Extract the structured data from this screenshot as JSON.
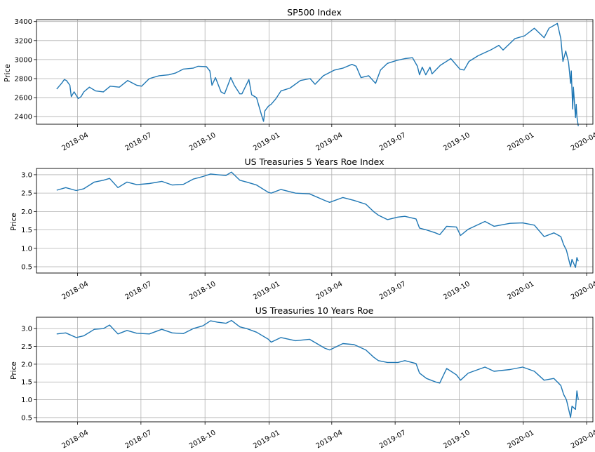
{
  "colors": {
    "line": "#1f77b4",
    "grid": "#b0b0b0"
  },
  "chart_data": [
    {
      "type": "line",
      "title": "SP500 Index",
      "xlabel": "",
      "ylabel": "Price",
      "grid": true,
      "xlim": [
        "2018-02-01",
        "2020-04-10"
      ],
      "ylim": [
        2320,
        3420
      ],
      "yticks": [
        2400,
        2600,
        2800,
        3000,
        3200,
        3400
      ],
      "yticks_labels": [
        "2400",
        "2600",
        "2800",
        "3000",
        "3200",
        "3400"
      ],
      "xticks": [
        "2018-04-01",
        "2018-07-01",
        "2018-10-01",
        "2019-01-01",
        "2019-04-01",
        "2019-07-01",
        "2019-10-01",
        "2020-01-01",
        "2020-04-01"
      ],
      "xticks_labels": [
        "2018-04",
        "2018-07",
        "2018-10",
        "2019-01",
        "2019-04",
        "2019-07",
        "2019-10",
        "2020-01",
        "2020-04"
      ],
      "series": [
        {
          "x": [
            "2018-03-02",
            "2018-03-09",
            "2018-03-13",
            "2018-03-16",
            "2018-03-21",
            "2018-03-23",
            "2018-03-27",
            "2018-04-02",
            "2018-04-06",
            "2018-04-10",
            "2018-04-18",
            "2018-04-27",
            "2018-05-08",
            "2018-05-18",
            "2018-05-31",
            "2018-06-12",
            "2018-06-25",
            "2018-07-02",
            "2018-07-13",
            "2018-07-27",
            "2018-08-10",
            "2018-08-20",
            "2018-08-31",
            "2018-09-14",
            "2018-09-21",
            "2018-10-03",
            "2018-10-08",
            "2018-10-11",
            "2018-10-16",
            "2018-10-24",
            "2018-10-29",
            "2018-11-07",
            "2018-11-12",
            "2018-11-20",
            "2018-11-23",
            "2018-12-03",
            "2018-12-07",
            "2018-12-14",
            "2018-12-21",
            "2018-12-24",
            "2018-12-26",
            "2018-12-31",
            "2019-01-04",
            "2019-01-11",
            "2019-01-18",
            "2019-01-31",
            "2019-02-15",
            "2019-03-01",
            "2019-03-08",
            "2019-03-20",
            "2019-04-05",
            "2019-04-17",
            "2019-04-30",
            "2019-05-06",
            "2019-05-13",
            "2019-05-24",
            "2019-06-03",
            "2019-06-10",
            "2019-06-20",
            "2019-07-03",
            "2019-07-15",
            "2019-07-26",
            "2019-08-02",
            "2019-08-05",
            "2019-08-09",
            "2019-08-14",
            "2019-08-20",
            "2019-08-23",
            "2019-09-04",
            "2019-09-19",
            "2019-10-02",
            "2019-10-08",
            "2019-10-15",
            "2019-10-28",
            "2019-11-15",
            "2019-11-27",
            "2019-12-03",
            "2019-12-20",
            "2020-01-03",
            "2020-01-17",
            "2020-01-31",
            "2020-02-07",
            "2020-02-19",
            "2020-02-24",
            "2020-02-27",
            "2020-03-02",
            "2020-03-06",
            "2020-03-09",
            "2020-03-10",
            "2020-03-12",
            "2020-03-13",
            "2020-03-16",
            "2020-03-17",
            "2020-03-18",
            "2020-03-20"
          ],
          "values": [
            2690,
            2750,
            2790,
            2780,
            2730,
            2610,
            2660,
            2590,
            2610,
            2660,
            2710,
            2670,
            2660,
            2720,
            2710,
            2780,
            2730,
            2720,
            2800,
            2830,
            2840,
            2860,
            2900,
            2910,
            2930,
            2925,
            2880,
            2730,
            2810,
            2660,
            2640,
            2810,
            2730,
            2640,
            2640,
            2790,
            2630,
            2600,
            2420,
            2350,
            2460,
            2510,
            2530,
            2590,
            2670,
            2700,
            2780,
            2800,
            2740,
            2830,
            2890,
            2910,
            2950,
            2930,
            2810,
            2830,
            2750,
            2890,
            2960,
            2990,
            3010,
            3020,
            2930,
            2840,
            2920,
            2840,
            2920,
            2850,
            2940,
            3010,
            2900,
            2890,
            2980,
            3040,
            3100,
            3150,
            3100,
            3220,
            3250,
            3330,
            3230,
            3330,
            3380,
            3220,
            2980,
            3090,
            2970,
            2750,
            2880,
            2480,
            2710,
            2390,
            2530,
            2400,
            2300
          ]
        }
      ]
    },
    {
      "type": "line",
      "title": "US Treasuries 5 Years Roe Index",
      "xlabel": "",
      "ylabel": "Price",
      "grid": true,
      "xlim": [
        "2018-02-01",
        "2020-04-10"
      ],
      "ylim": [
        0.33,
        3.17
      ],
      "yticks": [
        0.5,
        1.0,
        1.5,
        2.0,
        2.5,
        3.0
      ],
      "yticks_labels": [
        "0.5",
        "1.0",
        "1.5",
        "2.0",
        "2.5",
        "3.0"
      ],
      "xticks": [
        "2018-04-01",
        "2018-07-01",
        "2018-10-01",
        "2019-01-01",
        "2019-04-01",
        "2019-07-01",
        "2019-10-01",
        "2020-01-01",
        "2020-04-01"
      ],
      "xticks_labels": [
        "2018-04",
        "2018-07",
        "2018-10",
        "2019-01",
        "2019-04",
        "2019-07",
        "2019-10",
        "2020-01",
        "2020-04"
      ],
      "series": [
        {
          "x": [
            "2018-03-02",
            "2018-03-15",
            "2018-03-30",
            "2018-04-10",
            "2018-04-25",
            "2018-05-08",
            "2018-05-17",
            "2018-05-29",
            "2018-06-11",
            "2018-06-25",
            "2018-07-13",
            "2018-07-31",
            "2018-08-15",
            "2018-08-31",
            "2018-09-14",
            "2018-09-28",
            "2018-10-09",
            "2018-10-19",
            "2018-10-31",
            "2018-11-08",
            "2018-11-20",
            "2018-11-30",
            "2018-12-14",
            "2018-12-31",
            "2019-01-04",
            "2019-01-18",
            "2019-02-08",
            "2019-02-28",
            "2019-03-22",
            "2019-03-29",
            "2019-04-17",
            "2019-05-03",
            "2019-05-20",
            "2019-05-31",
            "2019-06-07",
            "2019-06-20",
            "2019-07-05",
            "2019-07-15",
            "2019-07-31",
            "2019-08-05",
            "2019-08-15",
            "2019-08-28",
            "2019-09-03",
            "2019-09-13",
            "2019-09-27",
            "2019-10-03",
            "2019-10-14",
            "2019-11-07",
            "2019-11-20",
            "2019-12-13",
            "2019-12-31",
            "2020-01-17",
            "2020-01-31",
            "2020-02-14",
            "2020-02-24",
            "2020-02-28",
            "2020-03-03",
            "2020-03-09",
            "2020-03-11",
            "2020-03-16",
            "2020-03-18",
            "2020-03-20"
          ],
          "values": [
            2.58,
            2.65,
            2.57,
            2.62,
            2.8,
            2.85,
            2.9,
            2.65,
            2.8,
            2.73,
            2.76,
            2.82,
            2.72,
            2.74,
            2.88,
            2.95,
            3.02,
            3.0,
            2.98,
            3.07,
            2.85,
            2.8,
            2.72,
            2.52,
            2.5,
            2.6,
            2.5,
            2.48,
            2.3,
            2.25,
            2.38,
            2.3,
            2.2,
            2.0,
            1.9,
            1.78,
            1.85,
            1.87,
            1.8,
            1.55,
            1.5,
            1.42,
            1.37,
            1.6,
            1.58,
            1.35,
            1.52,
            1.73,
            1.6,
            1.68,
            1.69,
            1.63,
            1.32,
            1.42,
            1.32,
            1.1,
            0.95,
            0.5,
            0.7,
            0.48,
            0.75,
            0.65
          ]
        }
      ]
    },
    {
      "type": "line",
      "title": "US Treasuries 10 Years Roe",
      "xlabel": "",
      "ylabel": "Price",
      "grid": true,
      "xlim": [
        "2018-02-01",
        "2020-04-10"
      ],
      "ylim": [
        0.38,
        3.32
      ],
      "yticks": [
        0.5,
        1.0,
        1.5,
        2.0,
        2.5,
        3.0
      ],
      "yticks_labels": [
        "0.5",
        "1.0",
        "1.5",
        "2.0",
        "2.5",
        "3.0"
      ],
      "xticks": [
        "2018-04-01",
        "2018-07-01",
        "2018-10-01",
        "2019-01-01",
        "2019-04-01",
        "2019-07-01",
        "2019-10-01",
        "2020-01-01",
        "2020-04-01"
      ],
      "xticks_labels": [
        "2018-04",
        "2018-07",
        "2018-10",
        "2019-01",
        "2019-04",
        "2019-07",
        "2019-10",
        "2020-01",
        "2020-04"
      ],
      "series": [
        {
          "x": [
            "2018-03-02",
            "2018-03-15",
            "2018-03-30",
            "2018-04-10",
            "2018-04-25",
            "2018-05-08",
            "2018-05-17",
            "2018-05-29",
            "2018-06-11",
            "2018-06-25",
            "2018-07-13",
            "2018-07-31",
            "2018-08-15",
            "2018-08-31",
            "2018-09-14",
            "2018-09-28",
            "2018-10-09",
            "2018-10-19",
            "2018-10-31",
            "2018-11-08",
            "2018-11-20",
            "2018-11-30",
            "2018-12-14",
            "2018-12-31",
            "2019-01-04",
            "2019-01-18",
            "2019-02-08",
            "2019-02-28",
            "2019-03-22",
            "2019-03-29",
            "2019-04-17",
            "2019-05-03",
            "2019-05-20",
            "2019-05-31",
            "2019-06-07",
            "2019-06-20",
            "2019-07-05",
            "2019-07-15",
            "2019-07-31",
            "2019-08-05",
            "2019-08-15",
            "2019-08-28",
            "2019-09-03",
            "2019-09-13",
            "2019-09-27",
            "2019-10-03",
            "2019-10-14",
            "2019-11-07",
            "2019-11-20",
            "2019-12-13",
            "2019-12-31",
            "2020-01-17",
            "2020-01-31",
            "2020-02-14",
            "2020-02-24",
            "2020-02-28",
            "2020-03-03",
            "2020-03-09",
            "2020-03-11",
            "2020-03-16",
            "2020-03-18",
            "2020-03-20"
          ],
          "values": [
            2.85,
            2.88,
            2.75,
            2.8,
            2.98,
            3.0,
            3.1,
            2.85,
            2.95,
            2.87,
            2.85,
            2.98,
            2.88,
            2.86,
            3.0,
            3.08,
            3.22,
            3.18,
            3.15,
            3.23,
            3.05,
            3.0,
            2.9,
            2.7,
            2.62,
            2.75,
            2.66,
            2.7,
            2.45,
            2.4,
            2.58,
            2.55,
            2.4,
            2.2,
            2.1,
            2.05,
            2.05,
            2.1,
            2.02,
            1.75,
            1.6,
            1.5,
            1.47,
            1.88,
            1.7,
            1.55,
            1.75,
            1.92,
            1.8,
            1.85,
            1.92,
            1.8,
            1.55,
            1.6,
            1.4,
            1.15,
            1.0,
            0.5,
            0.82,
            0.73,
            1.25,
            1.0
          ]
        }
      ]
    }
  ]
}
